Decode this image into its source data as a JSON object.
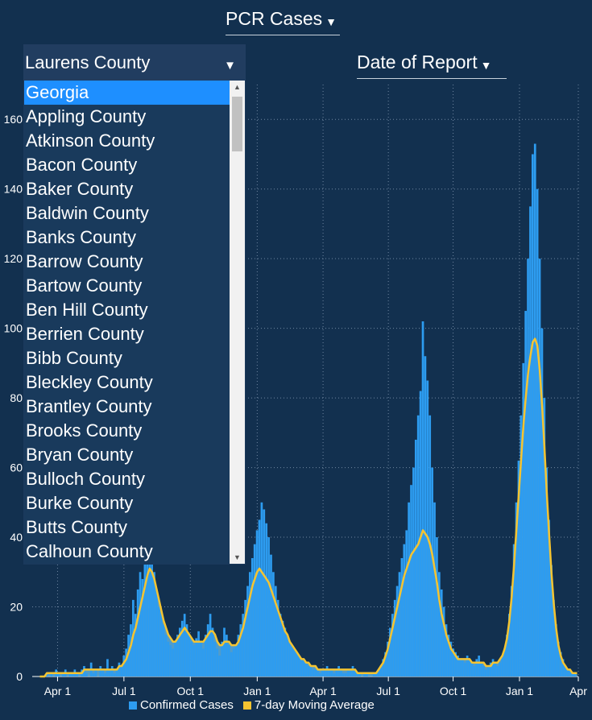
{
  "metric_select": {
    "label": "PCR Cases",
    "icon": "caret-down-icon"
  },
  "date_select": {
    "label": "Date of Report",
    "icon": "caret-down-icon"
  },
  "county_dropdown": {
    "selected": "Laurens County",
    "highlighted": "Georgia",
    "options": [
      "Georgia",
      "Appling County",
      "Atkinson County",
      "Bacon County",
      "Baker County",
      "Baldwin County",
      "Banks County",
      "Barrow County",
      "Bartow County",
      "Ben Hill County",
      "Berrien County",
      "Bibb County",
      "Bleckley County",
      "Brantley County",
      "Brooks County",
      "Bryan County",
      "Bulloch County",
      "Burke County",
      "Butts County",
      "Calhoun County"
    ]
  },
  "colors": {
    "background": "#12304f",
    "bars": "#2d9cf0",
    "area": "#5aa9d6",
    "moving_average": "#f5c431",
    "highlight": "#1e8fff"
  },
  "legend": [
    {
      "label": "Confirmed Cases",
      "color": "#2d9cf0"
    },
    {
      "label": "7-day Moving Average",
      "color": "#f5c431"
    }
  ],
  "chart_data": {
    "type": "bar",
    "ylim": [
      0,
      170
    ],
    "yticks": [
      0,
      20,
      40,
      60,
      80,
      100,
      120,
      140,
      160
    ],
    "xticks": [
      "Apr 1",
      "Jul 1",
      "Oct 1",
      "Jan 1",
      "Apr 1",
      "Jul 1",
      "Oct 1",
      "Jan 1",
      "Apr"
    ],
    "grid": true,
    "series": [
      {
        "name": "Confirmed Cases",
        "type": "bar",
        "values": [
          0,
          0,
          0,
          1,
          0,
          1,
          0,
          2,
          1,
          0,
          1,
          2,
          0,
          1,
          1,
          2,
          1,
          0,
          2,
          3,
          1,
          0,
          4,
          1,
          2,
          0,
          3,
          2,
          1,
          5,
          2,
          3,
          1,
          2,
          4,
          3,
          6,
          8,
          12,
          15,
          22,
          18,
          25,
          30,
          28,
          35,
          40,
          45,
          38,
          30,
          25,
          20,
          18,
          15,
          12,
          10,
          9,
          8,
          10,
          12,
          14,
          16,
          18,
          15,
          12,
          10,
          9,
          11,
          13,
          10,
          8,
          12,
          15,
          18,
          14,
          10,
          8,
          6,
          10,
          14,
          12,
          9,
          7,
          8,
          9,
          12,
          15,
          18,
          22,
          26,
          30,
          34,
          38,
          42,
          45,
          50,
          48,
          44,
          40,
          35,
          30,
          26,
          22,
          18,
          16,
          14,
          12,
          10,
          9,
          8,
          7,
          6,
          5,
          5,
          4,
          3,
          3,
          2,
          2,
          2,
          1,
          2,
          2,
          3,
          2,
          2,
          1,
          2,
          3,
          2,
          1,
          1,
          2,
          2,
          3,
          2,
          1,
          1,
          0,
          1,
          1,
          0,
          0,
          1,
          1,
          2,
          3,
          5,
          7,
          10,
          14,
          18,
          22,
          26,
          30,
          34,
          38,
          42,
          50,
          55,
          60,
          68,
          75,
          82,
          102,
          92,
          85,
          75,
          60,
          50,
          40,
          30,
          25,
          20,
          15,
          12,
          10,
          8,
          7,
          6,
          5,
          5,
          4,
          6,
          5,
          4,
          3,
          5,
          6,
          4,
          3,
          2,
          3,
          4,
          5,
          4,
          3,
          4,
          6,
          8,
          12,
          18,
          26,
          38,
          50,
          62,
          75,
          90,
          105,
          120,
          135,
          150,
          153,
          140,
          120,
          100,
          80,
          60,
          45,
          32,
          22,
          15,
          10,
          7,
          5,
          3,
          2,
          2,
          1,
          1,
          0
        ]
      },
      {
        "name": "7-day Moving Average",
        "type": "line",
        "values": [
          0,
          0,
          0,
          1,
          1,
          1,
          1,
          1,
          1,
          1,
          1,
          1,
          1,
          1,
          1,
          1,
          1,
          1,
          1,
          2,
          2,
          2,
          2,
          2,
          2,
          2,
          2,
          2,
          2,
          2,
          2,
          2,
          2,
          2,
          3,
          3,
          4,
          5,
          7,
          9,
          12,
          14,
          17,
          20,
          23,
          26,
          29,
          31,
          30,
          28,
          25,
          22,
          19,
          16,
          14,
          12,
          11,
          10,
          10,
          11,
          12,
          13,
          14,
          13,
          12,
          11,
          10,
          10,
          10,
          10,
          10,
          11,
          12,
          13,
          13,
          12,
          10,
          9,
          9,
          10,
          10,
          10,
          9,
          9,
          9,
          10,
          12,
          14,
          17,
          20,
          23,
          26,
          28,
          30,
          31,
          30,
          29,
          28,
          27,
          25,
          23,
          21,
          19,
          17,
          15,
          13,
          12,
          10,
          9,
          8,
          7,
          6,
          5,
          5,
          4,
          4,
          3,
          3,
          3,
          2,
          2,
          2,
          2,
          2,
          2,
          2,
          2,
          2,
          2,
          2,
          2,
          2,
          2,
          2,
          2,
          2,
          1,
          1,
          1,
          1,
          1,
          1,
          1,
          1,
          1,
          2,
          3,
          4,
          6,
          8,
          11,
          14,
          17,
          20,
          23,
          26,
          29,
          31,
          33,
          35,
          36,
          37,
          38,
          40,
          42,
          41,
          40,
          38,
          35,
          31,
          27,
          22,
          18,
          15,
          12,
          10,
          8,
          7,
          6,
          5,
          5,
          5,
          5,
          5,
          5,
          4,
          4,
          4,
          4,
          4,
          4,
          3,
          3,
          3,
          4,
          4,
          4,
          5,
          6,
          8,
          11,
          16,
          23,
          32,
          42,
          52,
          62,
          72,
          80,
          87,
          92,
          96,
          97,
          95,
          88,
          78,
          66,
          53,
          41,
          30,
          21,
          14,
          9,
          6,
          4,
          3,
          2,
          2,
          1,
          1,
          1
        ]
      }
    ]
  }
}
